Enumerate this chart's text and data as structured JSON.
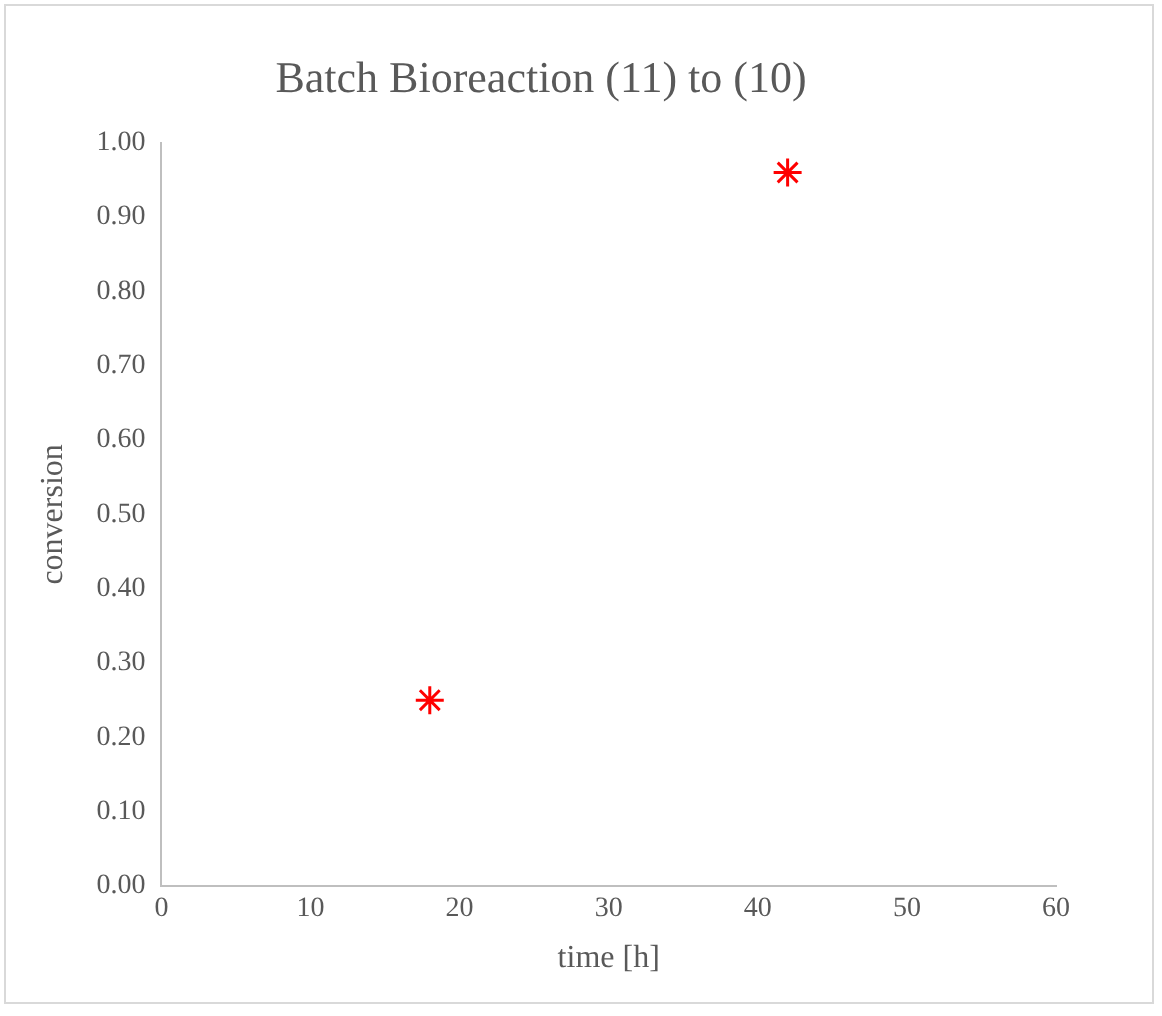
{
  "chart_data": {
    "type": "scatter",
    "title": "Batch Bioreaction (11) to (10)",
    "xlabel": "time [h]",
    "ylabel": "conversion",
    "x": [
      18,
      42
    ],
    "series": [
      {
        "color": "#ff0000",
        "values": [
          0.25,
          0.96
        ]
      }
    ],
    "marker": "cross",
    "grid": false,
    "legend": false,
    "xlim": [
      0,
      60
    ],
    "xticks": [
      0,
      10,
      20,
      30,
      40,
      50,
      60
    ],
    "ylim": [
      0,
      1
    ],
    "yticks": [
      {
        "value": 0,
        "label": "0.00"
      },
      {
        "value": 0.1,
        "label": "0.10"
      },
      {
        "value": 0.2,
        "label": "0.20"
      },
      {
        "value": 0.3,
        "label": "0.30"
      },
      {
        "value": 0.4,
        "label": "0.40"
      },
      {
        "value": 0.5,
        "label": "0.50"
      },
      {
        "value": 0.6,
        "label": "0.60"
      },
      {
        "value": 0.7,
        "label": "0.70"
      },
      {
        "value": 0.8,
        "label": "0.80"
      },
      {
        "value": 0.9,
        "label": "0.90"
      },
      {
        "value": 1,
        "label": "1.00"
      }
    ]
  }
}
